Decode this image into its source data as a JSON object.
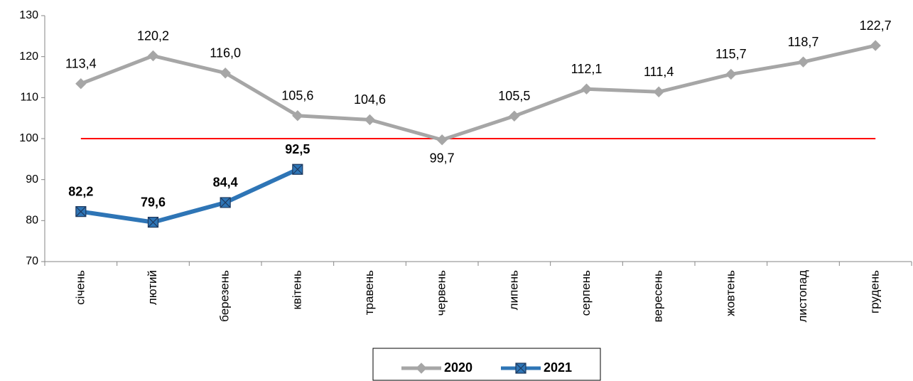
{
  "chart_data": {
    "type": "line",
    "categories": [
      "січень",
      "лютий",
      "березень",
      "квітень",
      "травень",
      "червень",
      "липень",
      "серпень",
      "вересень",
      "жовтень",
      "листопад",
      "грудень"
    ],
    "series": [
      {
        "name": "2020",
        "color": "#a6a6a6",
        "marker": "diamond",
        "values": [
          113.4,
          120.2,
          116.0,
          105.6,
          104.6,
          99.7,
          105.5,
          112.1,
          111.4,
          115.7,
          118.7,
          122.7
        ],
        "value_labels": [
          "113,4",
          "120,2",
          "116,0",
          "105,6",
          "104,6",
          "99,7",
          "105,5",
          "112,1",
          "111,4",
          "115,7",
          "118,7",
          "122,7"
        ]
      },
      {
        "name": "2021",
        "color": "#2e75b6",
        "marker": "square-x",
        "values": [
          82.2,
          79.6,
          84.4,
          92.5,
          null,
          null,
          null,
          null,
          null,
          null,
          null,
          null
        ],
        "value_labels": [
          "82,2",
          "79,6",
          "84,4",
          "92,5",
          null,
          null,
          null,
          null,
          null,
          null,
          null,
          null
        ]
      }
    ],
    "reference_line": 100,
    "reference_color": "#ff0000",
    "ylim": [
      70,
      130
    ],
    "yticks": [
      70,
      80,
      90,
      100,
      110,
      120,
      130
    ],
    "legend": "bottom"
  }
}
